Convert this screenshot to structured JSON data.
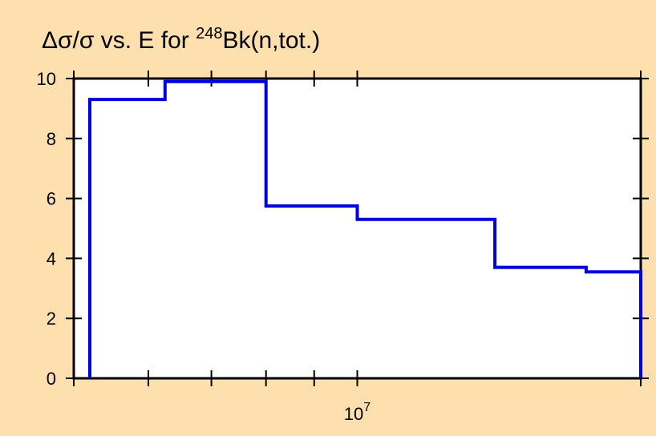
{
  "chart_data": {
    "type": "line",
    "step": true,
    "title": {
      "prefix": "Δσ/σ vs. E for ",
      "superscript": "248",
      "suffix": "Bk(n,tot.)"
    },
    "xlabel": "",
    "ylabel": "",
    "x_scale": "log",
    "xlim": [
      5000000,
      20000000
    ],
    "ylim": [
      0,
      10
    ],
    "y_ticks": [
      0,
      2,
      4,
      6,
      8,
      10
    ],
    "x_tick_labels": [
      {
        "value": 10000000,
        "base": "10",
        "exp": "7"
      }
    ],
    "x_minor_ticks": [
      5000000,
      6000000,
      7000000,
      8000000,
      9000000,
      10000000,
      20000000
    ],
    "grid": false,
    "line_color": "#0000dd",
    "plot_background": "#ffffff",
    "page_background": "#fde0ad",
    "series": [
      {
        "x": [
          5200000,
          6250000,
          8000000,
          10000000,
          14000000,
          17500000,
          20000000
        ],
        "y": [
          9.3,
          9.9,
          5.75,
          5.3,
          3.7,
          3.55,
          0
        ]
      }
    ]
  }
}
